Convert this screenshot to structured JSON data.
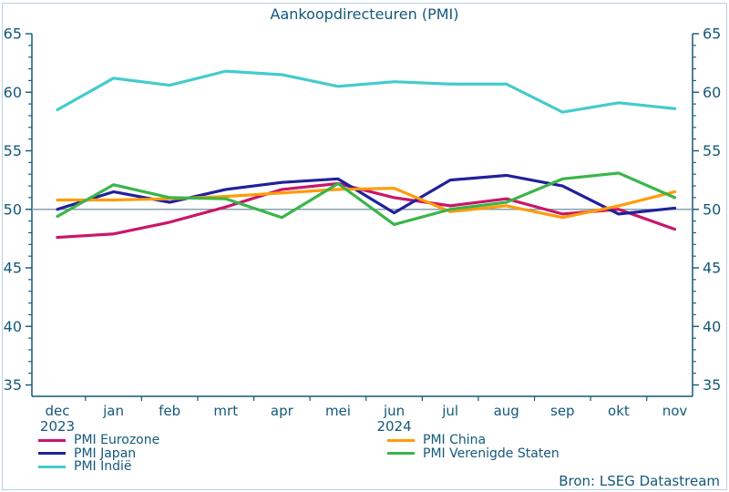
{
  "title": "Aankoopdirecteuren (PMI)",
  "source": "Bron: LSEG Datastream",
  "colors": {
    "text": "#14587a",
    "axis": "#14587a",
    "reference_line": "#87a0ad",
    "frame_border": "#b5d3e0",
    "background": "#ffffff"
  },
  "chart_data": {
    "type": "line",
    "title": "Aankoopdirecteuren (PMI)",
    "categories": [
      "dec",
      "jan",
      "feb",
      "mrt",
      "apr",
      "mei",
      "jun",
      "jul",
      "aug",
      "sep",
      "okt",
      "nov"
    ],
    "year_labels": [
      {
        "index": 0,
        "label": "2023"
      },
      {
        "index": 6,
        "label": "2024"
      }
    ],
    "ylim": [
      35,
      65
    ],
    "y_ticks_major": [
      35,
      40,
      45,
      50,
      55,
      60,
      65
    ],
    "y_tick_minor_step": 1,
    "right_axis_mirror": true,
    "grid": false,
    "reference_line": 50,
    "legend_position": "bottom",
    "series": [
      {
        "name": "PMI Eurozone",
        "color": "#c9166a",
        "values": [
          47.6,
          47.9,
          48.9,
          50.2,
          51.7,
          52.2,
          51.0,
          50.3,
          50.9,
          49.6,
          50.0,
          48.3
        ]
      },
      {
        "name": "PMI Japan",
        "color": "#21219b",
        "values": [
          50.0,
          51.5,
          50.6,
          51.7,
          52.3,
          52.6,
          49.7,
          52.5,
          52.9,
          52.0,
          49.6,
          50.1
        ]
      },
      {
        "name": "PMI Indië",
        "color": "#45cbcb",
        "values": [
          58.5,
          61.2,
          60.6,
          61.8,
          61.5,
          60.5,
          60.9,
          60.7,
          60.7,
          58.3,
          59.1,
          58.6
        ]
      },
      {
        "name": "PMI China",
        "color": "#ff9c0a",
        "values": [
          50.8,
          50.8,
          50.9,
          51.1,
          51.4,
          51.7,
          51.8,
          49.8,
          50.3,
          49.3,
          50.3,
          51.5
        ]
      },
      {
        "name": "PMI Verenigde Staten",
        "color": "#3ab549",
        "values": [
          49.4,
          52.1,
          51.0,
          50.9,
          49.3,
          52.2,
          48.7,
          50.0,
          50.6,
          52.6,
          53.1,
          51.0
        ]
      }
    ]
  }
}
